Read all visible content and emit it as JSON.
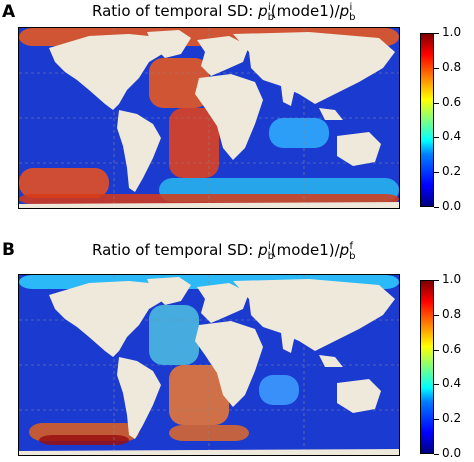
{
  "chart_data": [
    {
      "type": "heatmap",
      "panel_label": "A",
      "title_prefix": "Ratio of temporal SD: ",
      "title_num_var": "p",
      "title_num_sub": "b",
      "title_num_sup": "i",
      "title_mid": "(mode1)/",
      "title_den_var": "p",
      "title_den_sub": "b",
      "title_den_sup": "i",
      "colorbar": {
        "min": 0.0,
        "max": 1.0,
        "ticks": [
          "0.0",
          "0.2",
          "0.4",
          "0.6",
          "0.8",
          "1.0"
        ]
      },
      "grid": true
    },
    {
      "type": "heatmap",
      "panel_label": "B",
      "title_prefix": "Ratio of temporal SD: ",
      "title_num_var": "p",
      "title_num_sub": "b",
      "title_num_sup": "i",
      "title_mid": "(mode1)/",
      "title_den_var": "p",
      "title_den_sub": "b",
      "title_den_sup": "f",
      "colorbar": {
        "min": 0.0,
        "max": 1.0,
        "ticks": [
          "0.0",
          "0.2",
          "0.4",
          "0.6",
          "0.8",
          "1.0"
        ]
      },
      "grid": true
    }
  ],
  "colors": {
    "land": "#efe9db",
    "ocean_low": "#1030c0",
    "ocean_high": "#e8401c"
  }
}
